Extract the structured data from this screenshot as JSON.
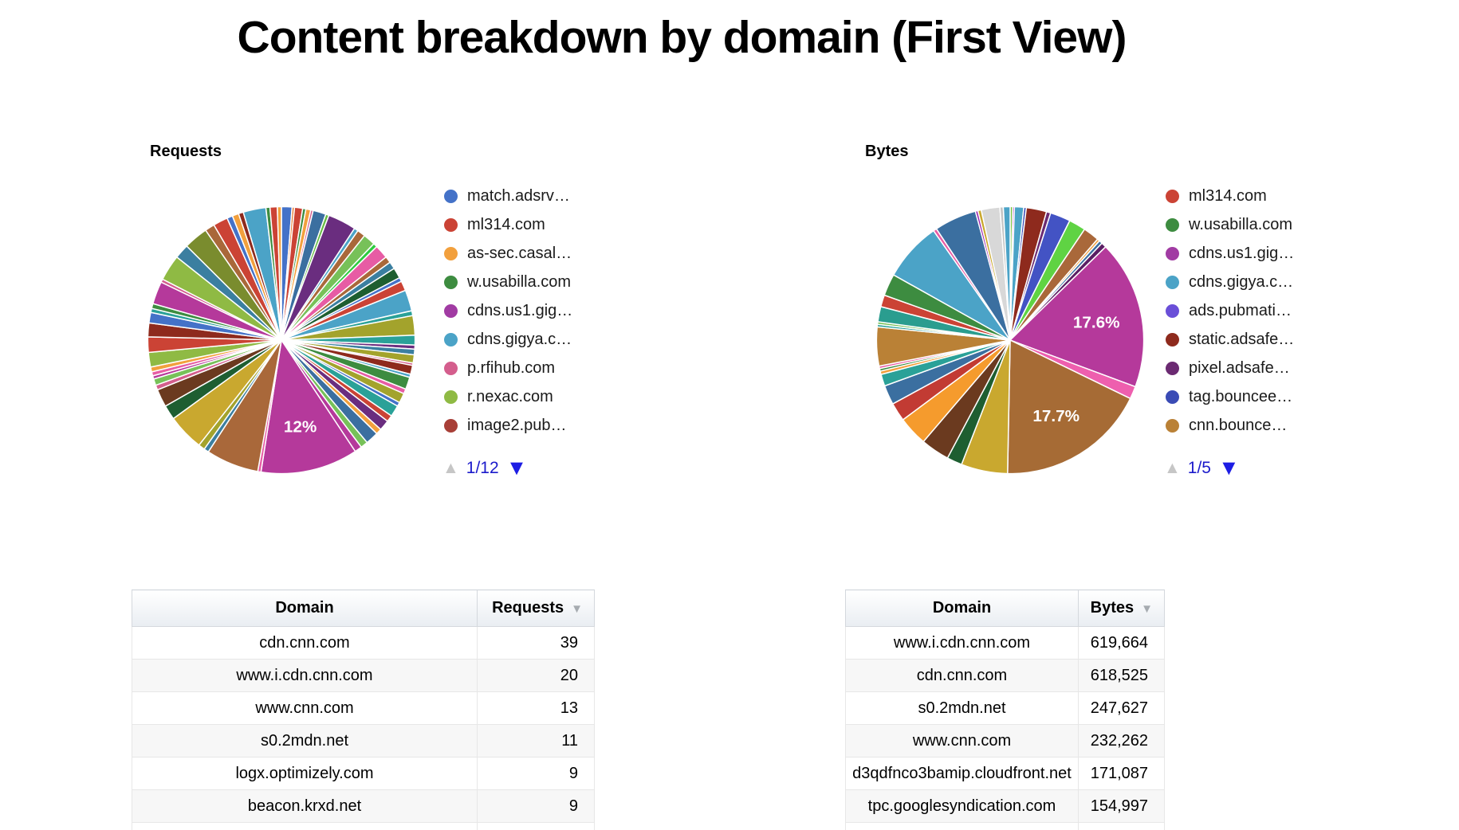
{
  "page": {
    "title": "Content breakdown by domain (First View)",
    "link_blue": "#1d1de4",
    "pager_disabled_grey": "#c6c6c6"
  },
  "chart_data": [
    {
      "type": "pie",
      "title": "Requests",
      "legend_position": "right",
      "pager_label": "1/12",
      "labeled_slices": [
        {
          "label": "12%",
          "color": "#B5399B"
        }
      ],
      "legend": [
        {
          "label": "match.adsrv…",
          "color": "#4472C8"
        },
        {
          "label": "ml314.com",
          "color": "#CB4335"
        },
        {
          "label": "as-sec.casal…",
          "color": "#F2A03D"
        },
        {
          "label": "w.usabilla.com",
          "color": "#3D8C40"
        },
        {
          "label": "cdns.us1.gig…",
          "color": "#A13BA3"
        },
        {
          "label": "cdns.gigya.c…",
          "color": "#4BA3C7"
        },
        {
          "label": "p.rfihub.com",
          "color": "#D45E8D"
        },
        {
          "label": "r.nexac.com",
          "color": "#8FBA44"
        },
        {
          "label": "image2.pub…",
          "color": "#A83F37"
        }
      ],
      "slices": [
        [
          1.3,
          "#4472C8"
        ],
        [
          0.3,
          "#E8803A"
        ],
        [
          1.0,
          "#CB4335"
        ],
        [
          0.4,
          "#3D8C40"
        ],
        [
          0.6,
          "#F2A03D"
        ],
        [
          0.3,
          "#D45E8D"
        ],
        [
          1.6,
          "#3B6FA0"
        ],
        [
          0.4,
          "#66BB44"
        ],
        [
          3.5,
          "#6A2D7F"
        ],
        [
          0.5,
          "#4BA3C7"
        ],
        [
          1.0,
          "#A9683A"
        ],
        [
          1.5,
          "#77C159"
        ],
        [
          0.5,
          "#2ECC40"
        ],
        [
          1.7,
          "#E75CA4"
        ],
        [
          0.8,
          "#A9683A"
        ],
        [
          0.9,
          "#3B7FA0"
        ],
        [
          1.3,
          "#1E5E31"
        ],
        [
          0.5,
          "#4472C8"
        ],
        [
          1.2,
          "#CB4335"
        ],
        [
          2.6,
          "#4BA3C7"
        ],
        [
          0.6,
          "#2AA198"
        ],
        [
          2.4,
          "#A3A32C"
        ],
        [
          1.2,
          "#2AA198"
        ],
        [
          0.5,
          "#6A2D7F"
        ],
        [
          0.7,
          "#3B7FA0"
        ],
        [
          1.0,
          "#A3A32C"
        ],
        [
          0.3,
          "#D45E8D"
        ],
        [
          1.1,
          "#8E2A1D"
        ],
        [
          0.4,
          "#4BA3C7"
        ],
        [
          1.5,
          "#3D8C40"
        ],
        [
          0.6,
          "#E75CA4"
        ],
        [
          1.2,
          "#A3A32C"
        ],
        [
          0.5,
          "#4472C8"
        ],
        [
          1.4,
          "#2AA198"
        ],
        [
          0.8,
          "#CB4335"
        ],
        [
          1.3,
          "#6A2D7F"
        ],
        [
          0.7,
          "#F2A03D"
        ],
        [
          1.6,
          "#3B6FA0"
        ],
        [
          0.9,
          "#77C159"
        ],
        [
          0.9,
          "#B5399B"
        ],
        [
          12.0,
          "#B5399B",
          "12%"
        ],
        [
          0.4,
          "#E75CA4"
        ],
        [
          6.5,
          "#A9683A"
        ],
        [
          0.6,
          "#3B7FA0"
        ],
        [
          0.8,
          "#A3A32C"
        ],
        [
          4.5,
          "#C9A82F"
        ],
        [
          1.8,
          "#1E5E31"
        ],
        [
          2.2,
          "#6B3A1F"
        ],
        [
          0.6,
          "#D45E8D"
        ],
        [
          0.8,
          "#77C159"
        ],
        [
          0.4,
          "#B5399B"
        ],
        [
          0.5,
          "#E75CA4"
        ],
        [
          0.6,
          "#F2A03D"
        ],
        [
          1.8,
          "#8FBA44"
        ],
        [
          1.9,
          "#CB4335"
        ],
        [
          1.7,
          "#8E2A1D"
        ],
        [
          1.3,
          "#4472C8"
        ],
        [
          0.5,
          "#2AA198"
        ],
        [
          0.6,
          "#3D8C40"
        ],
        [
          2.8,
          "#B5399B"
        ],
        [
          0.4,
          "#D45E8D"
        ],
        [
          3.2,
          "#8FBA44"
        ],
        [
          1.8,
          "#3B7FA0"
        ],
        [
          3.0,
          "#7A8C2E"
        ],
        [
          1.2,
          "#A9683A"
        ],
        [
          1.8,
          "#CB4335"
        ],
        [
          0.7,
          "#4472C8"
        ],
        [
          0.8,
          "#F2A03D"
        ],
        [
          0.6,
          "#8E2A1D"
        ],
        [
          2.8,
          "#4BA3C7"
        ],
        [
          0.5,
          "#3D8C40"
        ],
        [
          0.9,
          "#CB4335"
        ],
        [
          0.5,
          "#F2A03D"
        ]
      ]
    },
    {
      "type": "pie",
      "title": "Bytes",
      "legend_position": "right",
      "pager_label": "1/5",
      "labeled_slices": [
        {
          "label": "17.6%",
          "color": "#B5399B"
        },
        {
          "label": "17.7%",
          "color": "#A66B35"
        }
      ],
      "legend": [
        {
          "label": "ml314.com",
          "color": "#CB4335"
        },
        {
          "label": "w.usabilla.com",
          "color": "#3D8C40"
        },
        {
          "label": "cdns.us1.gig…",
          "color": "#A13BA3"
        },
        {
          "label": "cdns.gigya.c…",
          "color": "#4BA3C7"
        },
        {
          "label": "ads.pubmati…",
          "color": "#6A4FD8"
        },
        {
          "label": "static.adsafe…",
          "color": "#8E2A1D"
        },
        {
          "label": "pixel.adsafe…",
          "color": "#6B2A72"
        },
        {
          "label": "tag.bouncee…",
          "color": "#3A4BB5"
        },
        {
          "label": "cnn.bounce…",
          "color": "#BA8136"
        }
      ],
      "slices": [
        [
          0.3,
          "#7BC142"
        ],
        [
          0.2,
          "#9C27B0"
        ],
        [
          1.1,
          "#4BA3C7"
        ],
        [
          0.3,
          "#3A4BB5"
        ],
        [
          2.4,
          "#8E2A1D"
        ],
        [
          0.5,
          "#6B2A72"
        ],
        [
          2.4,
          "#4353C4"
        ],
        [
          2.0,
          "#5FD343"
        ],
        [
          1.9,
          "#A9683A"
        ],
        [
          0.3,
          "#F2A03D"
        ],
        [
          0.4,
          "#3B6FA0"
        ],
        [
          0.6,
          "#5A1E63"
        ],
        [
          17.6,
          "#B5399B",
          "17.6%"
        ],
        [
          1.5,
          "#EE5FAE"
        ],
        [
          17.7,
          "#A66B35",
          "17.7%"
        ],
        [
          5.5,
          "#C9A82F"
        ],
        [
          1.8,
          "#1E5E31"
        ],
        [
          3.4,
          "#6B3A1F"
        ],
        [
          3.5,
          "#F59B2D"
        ],
        [
          2.2,
          "#C23B33"
        ],
        [
          2.3,
          "#3B6FA0"
        ],
        [
          1.4,
          "#2AA198"
        ],
        [
          0.4,
          "#F2A03D"
        ],
        [
          0.3,
          "#3D8C40"
        ],
        [
          0.3,
          "#E75CA4"
        ],
        [
          4.6,
          "#BA8136"
        ],
        [
          0.3,
          "#2AA198"
        ],
        [
          0.3,
          "#77C159"
        ],
        [
          1.8,
          "#2A9D8F"
        ],
        [
          1.4,
          "#CB4335"
        ],
        [
          2.6,
          "#3D8C40"
        ],
        [
          7.0,
          "#4BA3C7"
        ],
        [
          0.4,
          "#E75CA4"
        ],
        [
          5.0,
          "#3B6FA0"
        ],
        [
          0.3,
          "#9C27B0"
        ],
        [
          0.4,
          "#C9A82F"
        ],
        [
          2.2,
          "#D8D8D8"
        ],
        [
          0.4,
          "#C4C4C4"
        ],
        [
          0.8,
          "#4BA3C7"
        ]
      ]
    }
  ],
  "tables": [
    {
      "headers": [
        "Domain",
        "Requests"
      ],
      "sorted_by": "Requests",
      "sort_direction": "desc",
      "rows": [
        [
          "cdn.cnn.com",
          "39"
        ],
        [
          "www.i.cdn.cnn.com",
          "20"
        ],
        [
          "www.cnn.com",
          "13"
        ],
        [
          "s0.2mdn.net",
          "11"
        ],
        [
          "logx.optimizely.com",
          "9"
        ],
        [
          "beacon.krxd.net",
          "9"
        ]
      ]
    },
    {
      "headers": [
        "Domain",
        "Bytes"
      ],
      "sorted_by": "Bytes",
      "sort_direction": "desc",
      "rows": [
        [
          "www.i.cdn.cnn.com",
          "619,664"
        ],
        [
          "cdn.cnn.com",
          "618,525"
        ],
        [
          "s0.2mdn.net",
          "247,627"
        ],
        [
          "www.cnn.com",
          "232,262"
        ],
        [
          "d3qdfnco3bamip.cloudfront.net",
          "171,087"
        ],
        [
          "tpc.googlesyndication.com",
          "154,997"
        ]
      ]
    }
  ]
}
